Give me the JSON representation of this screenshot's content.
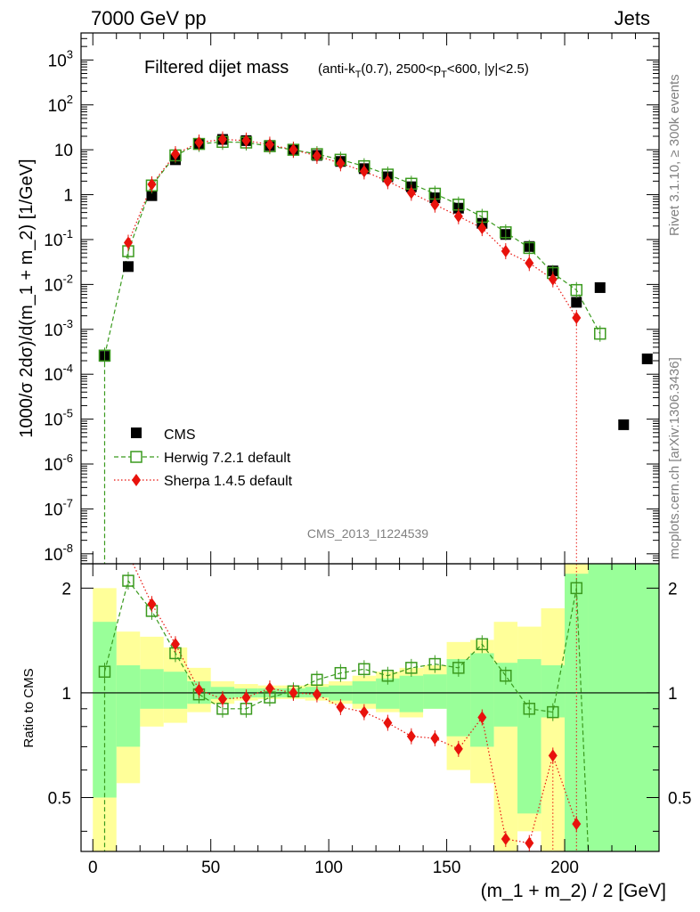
{
  "header": {
    "left_label": "7000 GeV pp",
    "right_label": "Jets"
  },
  "side_labels": {
    "rivet": "Rivet 3.1.10, ≥ 300k events",
    "mcplots": "mcplots.cern.ch [arXiv:1306.3436]"
  },
  "chart_data": [
    {
      "type": "scatter",
      "panel": "main",
      "title_main": "Filtered dijet mass",
      "title_sub": "(anti-k_T(0.7), 2500<p_T<600, |y|<2.5)",
      "title_sub_parts": {
        "p1": "(anti-k",
        "sub1": "T",
        "p2": "(0.7), 2500<p",
        "sub2": "T",
        "p3": "<600, |y|<2.5)"
      },
      "ylabel": "1000/σ 2dσ)/d(m_1 + m_2) [1/GeV]",
      "yscale": "log",
      "ylim": [
        6e-09,
        4000
      ],
      "xlim": [
        -5,
        240
      ],
      "watermark": "CMS_2013_I1224539",
      "ytick_labels": [
        {
          "base": "10",
          "exp": "3",
          "v": 1000
        },
        {
          "base": "10",
          "exp": "2",
          "v": 100
        },
        {
          "base": "10",
          "exp": "",
          "v": 10
        },
        {
          "base": "1",
          "exp": "",
          "v": 1
        },
        {
          "base": "10",
          "exp": "-1",
          "v": 0.1
        },
        {
          "base": "10",
          "exp": "-2",
          "v": 0.01
        },
        {
          "base": "10",
          "exp": "-3",
          "v": 0.001
        },
        {
          "base": "10",
          "exp": "-4",
          "v": 0.0001
        },
        {
          "base": "10",
          "exp": "-5",
          "v": 1e-05
        },
        {
          "base": "10",
          "exp": "-6",
          "v": 1e-06
        },
        {
          "base": "10",
          "exp": "-7",
          "v": 1e-07
        },
        {
          "base": "10",
          "exp": "-8",
          "v": 1e-08
        }
      ],
      "legend": [
        {
          "label": "CMS",
          "style": "square-black"
        },
        {
          "label": "Herwig 7.2.1 default",
          "style": "open-square-green-dashed"
        },
        {
          "label": "Sherpa 1.4.5 default",
          "style": "diamond-red-dotted"
        }
      ],
      "series": [
        {
          "name": "CMS",
          "color": "#000000",
          "x": [
            5,
            15,
            25,
            35,
            45,
            55,
            65,
            75,
            85,
            95,
            105,
            115,
            125,
            135,
            145,
            155,
            165,
            175,
            185,
            195,
            205,
            215,
            225,
            235
          ],
          "y": [
            0.00025,
            0.025,
            0.95,
            6.0,
            13.5,
            17.0,
            16.0,
            12.5,
            10.0,
            7.5,
            5.5,
            3.8,
            2.5,
            1.5,
            0.85,
            0.5,
            0.23,
            0.13,
            0.07,
            0.02,
            0.004,
            0.0085,
            7.5e-06,
            0.00022
          ]
        },
        {
          "name": "Herwig 7.2.1 default",
          "color": "#3a9a1e",
          "x": [
            5,
            15,
            25,
            35,
            45,
            55,
            65,
            75,
            85,
            95,
            105,
            115,
            125,
            135,
            145,
            155,
            165,
            175,
            185,
            195,
            205,
            215
          ],
          "y": [
            0.00026,
            0.055,
            1.6,
            7.5,
            13.5,
            15.0,
            14.5,
            12.0,
            10.0,
            8.0,
            6.0,
            4.3,
            2.8,
            1.75,
            1.05,
            0.6,
            0.32,
            0.145,
            0.065,
            0.018,
            0.0075,
            0.0008
          ]
        },
        {
          "name": "Sherpa 1.4.5 default",
          "color": "#e8120c",
          "x": [
            15,
            25,
            35,
            45,
            55,
            65,
            75,
            85,
            95,
            105,
            115,
            125,
            135,
            145,
            155,
            165,
            175,
            185,
            195,
            205
          ],
          "y": [
            0.085,
            1.7,
            8.0,
            14.5,
            17.0,
            16.0,
            13.0,
            10.0,
            7.3,
            5.0,
            3.3,
            2.0,
            1.1,
            0.6,
            0.33,
            0.18,
            0.055,
            0.03,
            0.013,
            0.0018
          ]
        }
      ]
    },
    {
      "type": "line",
      "panel": "ratio",
      "ylabel": "Ratio to CMS",
      "xlabel": "(m_1 + m_2) / 2 [GeV]",
      "xlim": [
        -5,
        240
      ],
      "ylim": [
        0.35,
        2.35
      ],
      "ytick_labels": [
        "2",
        "1",
        "0.5"
      ],
      "ytick_values": [
        2,
        1,
        0.5
      ],
      "xtick_labels": [
        "0",
        "50",
        "100",
        "150",
        "200"
      ],
      "xtick_values": [
        0,
        50,
        100,
        150,
        200
      ],
      "bands": {
        "bin_edges": [
          0,
          10,
          20,
          30,
          40,
          50,
          60,
          70,
          80,
          90,
          100,
          110,
          120,
          130,
          140,
          150,
          160,
          170,
          180,
          190,
          200,
          210,
          220,
          240
        ],
        "yellow_low": [
          0.35,
          0.55,
          0.8,
          0.82,
          0.88,
          0.93,
          0.95,
          0.96,
          0.96,
          0.95,
          0.93,
          0.9,
          0.88,
          0.85,
          0.9,
          0.6,
          0.55,
          0.35,
          0.4,
          0.35,
          0.35,
          0.35,
          0.35
        ],
        "yellow_high": [
          2.0,
          1.5,
          1.45,
          1.35,
          1.18,
          1.08,
          1.06,
          1.05,
          1.05,
          1.06,
          1.08,
          1.12,
          1.15,
          1.18,
          1.2,
          1.4,
          1.42,
          1.6,
          1.55,
          1.75,
          2.35,
          2.35,
          2.35
        ],
        "green_low": [
          0.5,
          0.7,
          0.9,
          0.9,
          0.93,
          0.96,
          0.97,
          0.97,
          0.97,
          0.97,
          0.95,
          0.93,
          0.9,
          0.88,
          0.9,
          0.75,
          0.7,
          0.8,
          0.45,
          0.85,
          0.35,
          0.35,
          0.35
        ],
        "green_high": [
          1.6,
          1.2,
          1.17,
          1.15,
          1.08,
          1.04,
          1.03,
          1.03,
          1.03,
          1.04,
          1.05,
          1.08,
          1.1,
          1.12,
          1.13,
          1.25,
          1.3,
          1.22,
          1.25,
          1.2,
          2.2,
          2.35,
          2.35
        ]
      },
      "series": [
        {
          "name": "Herwig 7.2.1 default",
          "color": "#3a9a1e",
          "x": [
            5,
            15,
            25,
            35,
            45,
            55,
            65,
            75,
            85,
            95,
            105,
            115,
            125,
            135,
            145,
            155,
            165,
            175,
            185,
            195,
            205
          ],
          "y": [
            1.15,
            2.1,
            1.72,
            1.3,
            0.99,
            0.9,
            0.9,
            0.97,
            1.01,
            1.09,
            1.14,
            1.17,
            1.12,
            1.18,
            1.21,
            1.18,
            1.38,
            1.12,
            0.9,
            0.88,
            2.0
          ]
        },
        {
          "name": "Sherpa 1.4.5 default",
          "color": "#e8120c",
          "x": [
            25,
            35,
            45,
            55,
            65,
            75,
            85,
            95,
            105,
            115,
            125,
            135,
            145,
            155,
            165,
            175,
            185,
            195,
            205
          ],
          "y": [
            1.8,
            1.38,
            1.02,
            0.96,
            0.97,
            1.03,
            1.0,
            0.99,
            0.91,
            0.88,
            0.82,
            0.75,
            0.74,
            0.69,
            0.85,
            0.38,
            0.37,
            0.66,
            0.42
          ]
        }
      ]
    }
  ]
}
